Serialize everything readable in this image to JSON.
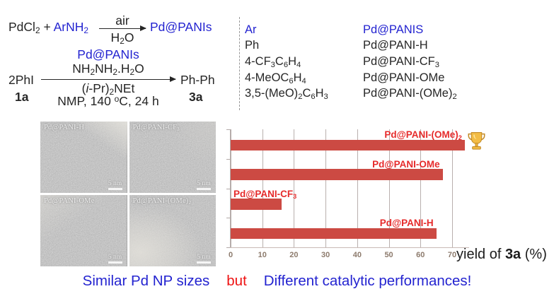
{
  "colors": {
    "blue": "#2323d0",
    "scheme_black": "#262626",
    "bar_red": "#cc4a43",
    "label_red": "#e62b2b",
    "tick_brown": "#8d7b6d",
    "gridline_gray": "#b9b0ae"
  },
  "scheme": {
    "reaction1": {
      "reactant1": "PdCl_{2}",
      "plus": "+",
      "reactant2": "ArNH_{2}",
      "above_arrow": "air",
      "below_arrow": "H_{2}O",
      "product": "Pd@PANIs"
    },
    "reaction2": {
      "substrate": "2PhI",
      "substrate_label": "1a",
      "catalyst": "Pd@PANIs",
      "reagent": "NH_{2}NH_{2}.H_{2}O",
      "base": "(*{i}-Pr)_{2}NEt",
      "conditions": "NMP, 140 ^{o}C, 24 h",
      "product": "Ph-Ph",
      "product_label": "3a"
    },
    "table": {
      "col1_header": "Ar",
      "col2_header": "Pd@PANIS",
      "rows": [
        {
          "ar": "Ph",
          "catalyst": "Pd@PANI-H"
        },
        {
          "ar": "4-CF_{3}C_{6}H_{4}",
          "catalyst": "Pd@PANI-CF_{3}"
        },
        {
          "ar": "4-MeOC_{6}H_{4}",
          "catalyst": "Pd@PANI-OMe"
        },
        {
          "ar": "3,5-(MeO)_{2}C_{6}H_{3}",
          "catalyst": "Pd@PANI-(OMe)_{2}"
        }
      ]
    }
  },
  "tem": {
    "panels": [
      {
        "label": "Pd@PANI-H",
        "scale_bar": "5 nm"
      },
      {
        "label": "Pd@PANI-CF_{3}",
        "scale_bar": "5 nm"
      },
      {
        "label": "Pd@PANI-OMe",
        "scale_bar": "5 nm"
      },
      {
        "label": "Pd@PANI-(OMe)_{2}",
        "scale_bar": "5 nm"
      }
    ]
  },
  "chart_data": {
    "type": "bar",
    "orientation": "horizontal",
    "order": "top-to-bottom",
    "categories": [
      "Pd@PANI-(OMe)_{2}",
      "Pd@PANI-OMe",
      "Pd@PANI-CF_{3}",
      "Pd@PANI-H"
    ],
    "values": [
      74,
      67,
      16,
      65
    ],
    "xlabel": "yield of !{3a} (%)",
    "xlim": [
      0,
      70
    ],
    "xticks": [
      0,
      10,
      20,
      30,
      40,
      50,
      60,
      70
    ],
    "grid": true,
    "legend": "none",
    "bar_color": "#cc4a43",
    "category_label_color": "#e62b2b",
    "axis_tick_label_color": "#8d7b6d",
    "winner_index": 0,
    "winner_icon": "trophy-icon"
  },
  "caption": {
    "parts": [
      {
        "text": "Similar Pd NP sizes",
        "color": "#2323d0"
      },
      {
        "text": "but",
        "color": "#ee1111"
      },
      {
        "text": "Different catalytic performances!",
        "color": "#2323d0"
      }
    ]
  }
}
